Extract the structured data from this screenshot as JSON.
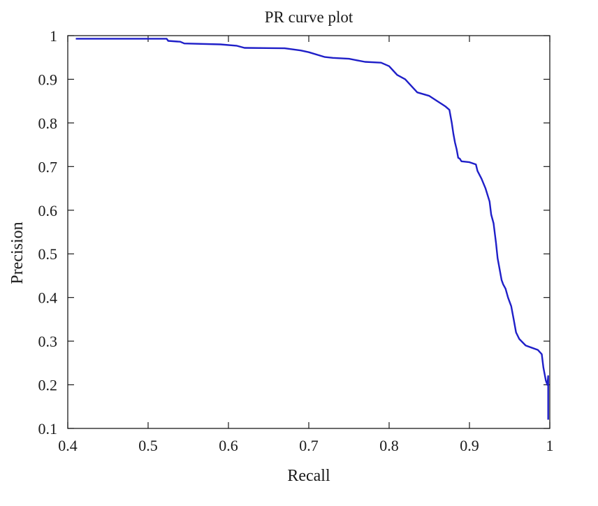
{
  "chart_data": {
    "type": "line",
    "title": "PR curve plot",
    "xlabel": "Recall",
    "ylabel": "Precision",
    "xlim": [
      0.4,
      1.0
    ],
    "ylim": [
      0.1,
      1.0
    ],
    "xticks": [
      "0.4",
      "0.5",
      "0.6",
      "0.7",
      "0.8",
      "0.9",
      "1"
    ],
    "yticks": [
      "0.1",
      "0.2",
      "0.3",
      "0.4",
      "0.5",
      "0.6",
      "0.7",
      "0.8",
      "0.9",
      "1"
    ],
    "grid": false,
    "line_color": "#1f1fc8",
    "series": [
      {
        "x": [
          0.41,
          0.523,
          0.525,
          0.54,
          0.545,
          0.59,
          0.61,
          0.62,
          0.67,
          0.69,
          0.7,
          0.72,
          0.73,
          0.75,
          0.77,
          0.79,
          0.8,
          0.805,
          0.81,
          0.82,
          0.83,
          0.835,
          0.85,
          0.86,
          0.87,
          0.875,
          0.878,
          0.88,
          0.882,
          0.884,
          0.886,
          0.888,
          0.89,
          0.9,
          0.908,
          0.91,
          0.915,
          0.92,
          0.925,
          0.927,
          0.93,
          0.933,
          0.935,
          0.937,
          0.94,
          0.942,
          0.945,
          0.948,
          0.952,
          0.955,
          0.958,
          0.962,
          0.97,
          0.985,
          0.99,
          0.992,
          0.995,
          0.997,
          0.998,
          0.998
        ],
        "y": [
          0.993,
          0.993,
          0.988,
          0.986,
          0.982,
          0.98,
          0.977,
          0.972,
          0.971,
          0.966,
          0.962,
          0.951,
          0.949,
          0.947,
          0.94,
          0.938,
          0.93,
          0.92,
          0.91,
          0.9,
          0.88,
          0.87,
          0.862,
          0.85,
          0.838,
          0.83,
          0.8,
          0.775,
          0.755,
          0.74,
          0.72,
          0.718,
          0.712,
          0.71,
          0.705,
          0.69,
          0.672,
          0.65,
          0.62,
          0.59,
          0.57,
          0.525,
          0.49,
          0.47,
          0.44,
          0.43,
          0.42,
          0.4,
          0.38,
          0.35,
          0.32,
          0.305,
          0.29,
          0.28,
          0.27,
          0.24,
          0.21,
          0.2,
          0.22,
          0.12
        ]
      }
    ]
  }
}
